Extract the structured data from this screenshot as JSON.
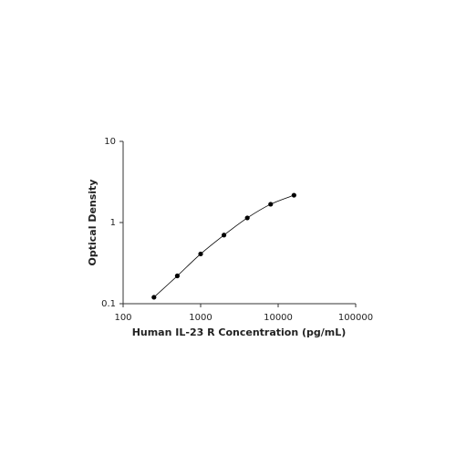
{
  "chart_data": {
    "type": "scatter",
    "xlabel": "Human IL-23 R Concentration (pg/mL)",
    "ylabel": "Optical Density",
    "x": [
      250,
      500,
      1000,
      2000,
      4000,
      8000,
      16000
    ],
    "values": [
      0.12,
      0.22,
      0.41,
      0.7,
      1.14,
      1.68,
      2.17
    ],
    "color": "#000000",
    "fit_line": true,
    "xscale": "log",
    "yscale": "log",
    "xlim": [
      100,
      100000
    ],
    "ylim": [
      0.1,
      10
    ],
    "xticks": [
      100,
      1000,
      10000,
      100000
    ],
    "yticks": [
      0.1,
      1,
      10
    ]
  }
}
